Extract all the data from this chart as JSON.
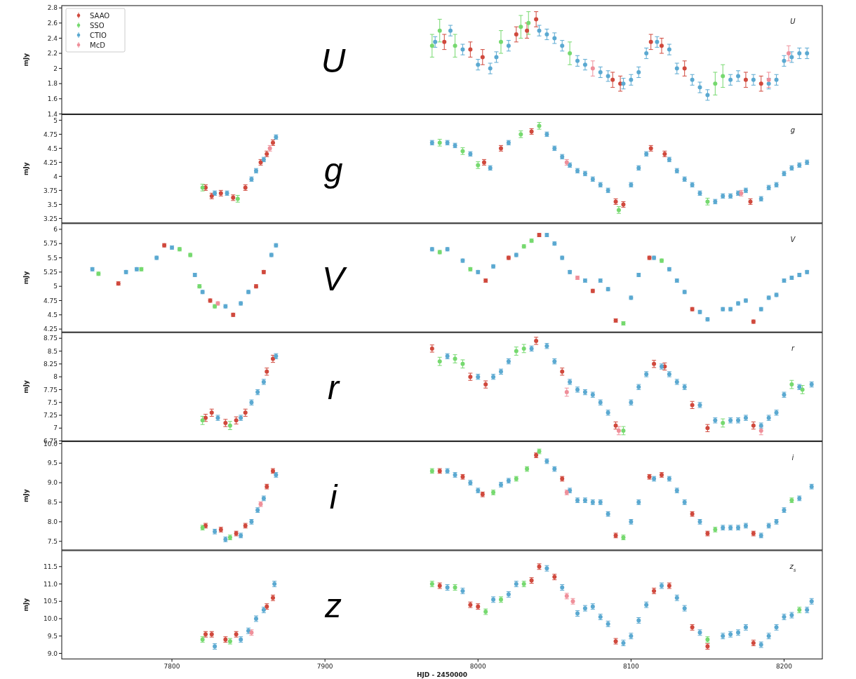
{
  "chart_data": [
    {
      "type": "scatter",
      "ylabel": "mJy",
      "annotations": [
        "U",
        "U"
      ],
      "xlim": [
        7728,
        8225
      ],
      "xticks": [
        7800,
        7900,
        8000,
        8100,
        8200
      ],
      "ylim": [
        1.4,
        2.83
      ],
      "yticks": [
        1.4,
        1.6,
        1.8,
        2.0,
        2.2,
        2.4,
        2.6,
        2.8
      ],
      "tick_labels": "y",
      "legend": "top left",
      "marker": "circle",
      "series": [
        {
          "name": "SAAO",
          "color": "#d0493d",
          "x": [
            7978,
            7995,
            8003,
            8025,
            8032,
            8038,
            8088,
            8093,
            8113,
            8120,
            8135,
            8175,
            8185
          ],
          "values": [
            2.35,
            2.25,
            2.15,
            2.45,
            2.5,
            2.65,
            1.85,
            1.8,
            2.35,
            2.3,
            2.0,
            1.85,
            1.8
          ],
          "errors": [
            0.1,
            0.1,
            0.1,
            0.1,
            0.1,
            0.1,
            0.1,
            0.1,
            0.1,
            0.1,
            0.1,
            0.1,
            0.1
          ]
        },
        {
          "name": "SSO",
          "color": "#76d96f",
          "x": [
            7970,
            7975,
            7985,
            8015,
            8028,
            8033,
            8060,
            8155,
            8160
          ],
          "values": [
            2.3,
            2.5,
            2.3,
            2.35,
            2.55,
            2.6,
            2.2,
            1.8,
            1.9
          ],
          "errors": [
            0.15,
            0.15,
            0.15,
            0.15,
            0.15,
            0.15,
            0.15,
            0.15,
            0.15
          ]
        },
        {
          "name": "CTIO",
          "color": "#5ba9d1",
          "x": [
            7972,
            7982,
            7990,
            8000,
            8008,
            8012,
            8020,
            8040,
            8045,
            8050,
            8055,
            8065,
            8070,
            8080,
            8085,
            8095,
            8100,
            8105,
            8110,
            8117,
            8125,
            8130,
            8140,
            8145,
            8150,
            8165,
            8170,
            8180,
            8190,
            8195,
            8200,
            8205,
            8210,
            8215
          ],
          "values": [
            2.35,
            2.5,
            2.25,
            2.05,
            2.0,
            2.15,
            2.3,
            2.5,
            2.45,
            2.4,
            2.3,
            2.1,
            2.05,
            1.95,
            1.9,
            1.8,
            1.85,
            1.95,
            2.2,
            2.35,
            2.25,
            2.0,
            1.85,
            1.75,
            1.65,
            1.85,
            1.9,
            1.85,
            1.8,
            1.85,
            2.1,
            2.15,
            2.2,
            2.2
          ],
          "errors": [
            0.07,
            0.07,
            0.07,
            0.07,
            0.07,
            0.07,
            0.07,
            0.07,
            0.07,
            0.07,
            0.07,
            0.07,
            0.07,
            0.07,
            0.07,
            0.07,
            0.07,
            0.07,
            0.07,
            0.07,
            0.07,
            0.07,
            0.07,
            0.07,
            0.07,
            0.07,
            0.07,
            0.07,
            0.07,
            0.07,
            0.07,
            0.07,
            0.07,
            0.07
          ]
        },
        {
          "name": "McD",
          "color": "#ef8f9a",
          "x": [
            8075,
            8190,
            8203
          ],
          "values": [
            2.0,
            1.85,
            2.2
          ],
          "errors": [
            0.1,
            0.1,
            0.1
          ]
        }
      ]
    },
    {
      "type": "scatter",
      "ylabel": "mJy",
      "annotations": [
        "g",
        "g"
      ],
      "xlim": [
        7728,
        8225
      ],
      "xticks": [
        7800,
        7900,
        8000,
        8100,
        8200
      ],
      "ylim": [
        3.17,
        5.1
      ],
      "yticks": [
        3.25,
        3.5,
        3.75,
        4.0,
        4.25,
        4.5,
        4.75,
        5.0
      ],
      "tick_labels": "y",
      "marker": "circle",
      "series": [
        {
          "color": "#d0493d",
          "x": [
            7822,
            7826,
            7832,
            7840,
            7848,
            7858,
            7862,
            7866,
            8004,
            8015,
            8035,
            8090,
            8095,
            8113,
            8122,
            8178
          ],
          "values": [
            3.8,
            3.65,
            3.7,
            3.62,
            3.8,
            4.25,
            4.4,
            4.6,
            4.25,
            4.5,
            4.8,
            3.55,
            3.5,
            4.5,
            4.4,
            3.55
          ],
          "errors": [
            0.05,
            0.05,
            0.05,
            0.05,
            0.05,
            0.05,
            0.05,
            0.05,
            0.05,
            0.05,
            0.05,
            0.05,
            0.05,
            0.05,
            0.05,
            0.05
          ]
        },
        {
          "color": "#76d96f",
          "x": [
            7820,
            7843,
            7975,
            7990,
            8000,
            8028,
            8040,
            8092,
            8150
          ],
          "values": [
            3.8,
            3.6,
            4.6,
            4.45,
            4.2,
            4.75,
            4.9,
            3.4,
            3.55
          ],
          "errors": [
            0.06,
            0.06,
            0.06,
            0.06,
            0.06,
            0.06,
            0.06,
            0.06,
            0.06
          ]
        },
        {
          "color": "#5ba9d1",
          "x": [
            7828,
            7836,
            7852,
            7855,
            7860,
            7868,
            7970,
            7980,
            7985,
            7995,
            8008,
            8020,
            8045,
            8050,
            8055,
            8060,
            8065,
            8070,
            8075,
            8080,
            8085,
            8100,
            8105,
            8110,
            8125,
            8130,
            8135,
            8140,
            8145,
            8155,
            8160,
            8165,
            8170,
            8175,
            8185,
            8190,
            8195,
            8200,
            8205,
            8210,
            8215
          ],
          "values": [
            3.7,
            3.7,
            3.95,
            4.1,
            4.3,
            4.7,
            4.6,
            4.6,
            4.55,
            4.4,
            4.15,
            4.6,
            4.75,
            4.5,
            4.35,
            4.2,
            4.1,
            4.05,
            3.95,
            3.85,
            3.75,
            3.85,
            4.15,
            4.4,
            4.3,
            4.1,
            3.95,
            3.85,
            3.7,
            3.55,
            3.65,
            3.65,
            3.7,
            3.75,
            3.6,
            3.8,
            3.85,
            4.05,
            4.15,
            4.2,
            4.25
          ],
          "errors": [
            0.04,
            0.04,
            0.04,
            0.04,
            0.04,
            0.04,
            0.04,
            0.04,
            0.04,
            0.04,
            0.04,
            0.04,
            0.04,
            0.04,
            0.04,
            0.04,
            0.04,
            0.04,
            0.04,
            0.04,
            0.04,
            0.04,
            0.04,
            0.04,
            0.04,
            0.04,
            0.04,
            0.04,
            0.04,
            0.04,
            0.04,
            0.04,
            0.04,
            0.04,
            0.04,
            0.04,
            0.04,
            0.04,
            0.04,
            0.04,
            0.04
          ]
        },
        {
          "color": "#ef8f9a",
          "x": [
            7864,
            8058,
            8172
          ],
          "values": [
            4.5,
            4.25,
            3.7
          ],
          "errors": [
            0.05,
            0.05,
            0.05
          ]
        }
      ]
    },
    {
      "type": "scatter",
      "ylabel": "mJy",
      "annotations": [
        "V",
        "V"
      ],
      "xlim": [
        7728,
        8225
      ],
      "xticks": [
        7800,
        7900,
        8000,
        8100,
        8200
      ],
      "ylim": [
        4.2,
        6.1
      ],
      "yticks": [
        4.25,
        4.5,
        4.75,
        5.0,
        5.25,
        5.5,
        5.75,
        6.0
      ],
      "tick_labels": "y",
      "marker": "circle",
      "series": [
        {
          "color": "#d0493d",
          "x": [
            7765,
            7795,
            7825,
            7840,
            7855,
            7860,
            8005,
            8020,
            8040,
            8075,
            8090,
            8112,
            8140,
            8180
          ],
          "values": [
            5.05,
            5.72,
            4.75,
            4.5,
            5.0,
            5.25,
            5.1,
            5.5,
            5.9,
            4.92,
            4.4,
            5.5,
            4.6,
            4.38
          ],
          "errors": [
            0.03,
            0.03,
            0.03,
            0.03,
            0.03,
            0.03,
            0.03,
            0.03,
            0.03,
            0.03,
            0.03,
            0.03,
            0.03,
            0.03
          ]
        },
        {
          "color": "#76d96f",
          "x": [
            7752,
            7780,
            7805,
            7812,
            7818,
            7828,
            7975,
            7995,
            8030,
            8035,
            8095,
            8120
          ],
          "values": [
            5.22,
            5.3,
            5.65,
            5.55,
            5.0,
            4.65,
            5.6,
            5.3,
            5.7,
            5.8,
            4.35,
            5.45
          ],
          "errors": [
            0.03,
            0.03,
            0.03,
            0.03,
            0.03,
            0.03,
            0.03,
            0.03,
            0.03,
            0.03,
            0.03,
            0.03
          ]
        },
        {
          "color": "#5ba9d1",
          "x": [
            7748,
            7770,
            7777,
            7790,
            7800,
            7815,
            7820,
            7835,
            7845,
            7850,
            7865,
            7868,
            7970,
            7980,
            7990,
            8000,
            8010,
            8025,
            8045,
            8050,
            8055,
            8060,
            8070,
            8080,
            8085,
            8100,
            8105,
            8115,
            8125,
            8130,
            8135,
            8145,
            8150,
            8160,
            8165,
            8170,
            8175,
            8185,
            8190,
            8195,
            8200,
            8205,
            8210,
            8215
          ],
          "values": [
            5.3,
            5.25,
            5.3,
            5.5,
            5.68,
            5.2,
            4.9,
            4.65,
            4.7,
            4.9,
            5.55,
            5.72,
            5.65,
            5.65,
            5.45,
            5.25,
            5.35,
            5.55,
            5.9,
            5.75,
            5.5,
            5.25,
            5.1,
            5.1,
            4.95,
            4.8,
            5.2,
            5.5,
            5.3,
            5.1,
            4.9,
            4.55,
            4.42,
            4.6,
            4.6,
            4.7,
            4.75,
            4.6,
            4.8,
            4.85,
            5.1,
            5.15,
            5.2,
            5.25
          ],
          "errors": [
            0.03,
            0.03,
            0.03,
            0.03,
            0.03,
            0.03,
            0.03,
            0.03,
            0.03,
            0.03,
            0.03,
            0.03,
            0.03,
            0.03,
            0.03,
            0.03,
            0.03,
            0.03,
            0.03,
            0.03,
            0.03,
            0.03,
            0.03,
            0.03,
            0.03,
            0.03,
            0.03,
            0.03,
            0.03,
            0.03,
            0.03,
            0.03,
            0.03,
            0.03,
            0.03,
            0.03,
            0.03,
            0.03,
            0.03,
            0.03,
            0.03,
            0.03,
            0.03,
            0.03
          ]
        },
        {
          "color": "#ef8f9a",
          "x": [
            7830,
            8065
          ],
          "values": [
            4.7,
            5.15
          ],
          "errors": [
            0.03,
            0.03
          ]
        }
      ]
    },
    {
      "type": "scatter",
      "ylabel": "mJy",
      "annotations": [
        "r",
        "r"
      ],
      "xlim": [
        7728,
        8225
      ],
      "xticks": [
        7800,
        7900,
        8000,
        8100,
        8200
      ],
      "ylim": [
        6.75,
        8.86
      ],
      "yticks": [
        6.75,
        7.0,
        7.25,
        7.5,
        7.75,
        8.0,
        8.25,
        8.5,
        8.75
      ],
      "tick_labels": "y",
      "marker": "circle",
      "series": [
        {
          "color": "#d0493d",
          "x": [
            7822,
            7826,
            7835,
            7842,
            7848,
            7862,
            7866,
            7970,
            7995,
            8005,
            8038,
            8055,
            8090,
            8115,
            8122,
            8140,
            8150,
            8180
          ],
          "values": [
            7.2,
            7.3,
            7.1,
            7.15,
            7.3,
            8.1,
            8.35,
            8.55,
            8.0,
            7.85,
            8.7,
            8.1,
            7.05,
            8.25,
            8.2,
            7.45,
            7.0,
            7.05
          ],
          "errors": [
            0.07,
            0.07,
            0.07,
            0.07,
            0.07,
            0.07,
            0.07,
            0.07,
            0.07,
            0.07,
            0.07,
            0.07,
            0.07,
            0.07,
            0.07,
            0.07,
            0.07,
            0.07
          ]
        },
        {
          "color": "#76d96f",
          "x": [
            7820,
            7838,
            7975,
            7985,
            7990,
            8025,
            8030,
            8095,
            8160,
            8205,
            8212
          ],
          "values": [
            7.15,
            7.05,
            8.3,
            8.35,
            8.25,
            8.5,
            8.55,
            6.95,
            7.1,
            7.85,
            7.75
          ],
          "errors": [
            0.08,
            0.08,
            0.08,
            0.08,
            0.08,
            0.08,
            0.08,
            0.08,
            0.08,
            0.08,
            0.08
          ]
        },
        {
          "color": "#5ba9d1",
          "x": [
            7830,
            7845,
            7852,
            7856,
            7860,
            7868,
            7980,
            8000,
            8010,
            8015,
            8020,
            8035,
            8045,
            8050,
            8060,
            8065,
            8070,
            8075,
            8080,
            8085,
            8100,
            8105,
            8110,
            8120,
            8125,
            8130,
            8135,
            8145,
            8155,
            8165,
            8170,
            8175,
            8185,
            8190,
            8195,
            8200,
            8210,
            8218
          ],
          "values": [
            7.2,
            7.2,
            7.5,
            7.7,
            7.9,
            8.4,
            8.4,
            8.0,
            8.0,
            8.1,
            8.3,
            8.55,
            8.6,
            8.3,
            7.9,
            7.75,
            7.7,
            7.65,
            7.5,
            7.3,
            7.5,
            7.8,
            8.05,
            8.2,
            8.05,
            7.9,
            7.8,
            7.45,
            7.15,
            7.15,
            7.15,
            7.2,
            7.05,
            7.2,
            7.3,
            7.65,
            7.8,
            7.85
          ],
          "errors": [
            0.05,
            0.05,
            0.05,
            0.05,
            0.05,
            0.05,
            0.05,
            0.05,
            0.05,
            0.05,
            0.05,
            0.05,
            0.05,
            0.05,
            0.05,
            0.05,
            0.05,
            0.05,
            0.05,
            0.05,
            0.05,
            0.05,
            0.05,
            0.05,
            0.05,
            0.05,
            0.05,
            0.05,
            0.05,
            0.05,
            0.05,
            0.05,
            0.05,
            0.05,
            0.05,
            0.05,
            0.05,
            0.05
          ]
        },
        {
          "color": "#ef8f9a",
          "x": [
            8058,
            8092,
            8185
          ],
          "values": [
            7.7,
            6.95,
            6.95
          ],
          "errors": [
            0.08,
            0.08,
            0.08
          ]
        }
      ]
    },
    {
      "type": "scatter",
      "ylabel": "mJy",
      "annotations": [
        "i",
        "i"
      ],
      "xlim": [
        7728,
        8225
      ],
      "xticks": [
        7800,
        7900,
        8000,
        8100,
        8200
      ],
      "ylim": [
        7.28,
        10.05
      ],
      "yticks": [
        {
          "value": 7.5,
          "label": "7.5"
        },
        {
          "value": 8.0,
          "label": "8.0"
        },
        {
          "value": 8.5,
          "label": "8.5"
        },
        {
          "value": 9.0,
          "label": "9.0"
        },
        {
          "value": 9.5,
          "label": "9.5"
        },
        {
          "value": 10.0,
          "label": "10.0"
        }
      ],
      "tick_labels": "y",
      "marker": "circle",
      "series": [
        {
          "color": "#d0493d",
          "x": [
            7822,
            7832,
            7842,
            7848,
            7862,
            7866,
            7975,
            7990,
            8003,
            8038,
            8055,
            8090,
            8112,
            8120,
            8140,
            8150,
            8180
          ],
          "values": [
            7.9,
            7.8,
            7.7,
            7.9,
            8.9,
            9.3,
            9.3,
            9.15,
            8.7,
            9.7,
            9.1,
            7.65,
            9.15,
            9.2,
            8.2,
            7.7,
            7.7
          ],
          "errors": [
            0.06,
            0.06,
            0.06,
            0.06,
            0.06,
            0.06,
            0.06,
            0.06,
            0.06,
            0.06,
            0.06,
            0.06,
            0.06,
            0.06,
            0.06,
            0.06,
            0.06
          ]
        },
        {
          "color": "#76d96f",
          "x": [
            7820,
            7838,
            7970,
            8010,
            8025,
            8032,
            8040,
            8095,
            8155,
            8205
          ],
          "values": [
            7.85,
            7.6,
            9.3,
            8.75,
            9.1,
            9.35,
            9.8,
            7.6,
            7.8,
            8.55
          ],
          "errors": [
            0.06,
            0.06,
            0.06,
            0.06,
            0.06,
            0.06,
            0.06,
            0.06,
            0.06,
            0.06
          ]
        },
        {
          "color": "#5ba9d1",
          "x": [
            7828,
            7835,
            7845,
            7852,
            7856,
            7860,
            7868,
            7980,
            7985,
            7995,
            8000,
            8015,
            8020,
            8045,
            8050,
            8060,
            8065,
            8070,
            8075,
            8080,
            8085,
            8100,
            8105,
            8115,
            8125,
            8130,
            8135,
            8145,
            8160,
            8165,
            8170,
            8175,
            8185,
            8190,
            8195,
            8200,
            8210,
            8218
          ],
          "values": [
            7.75,
            7.55,
            7.65,
            8.0,
            8.3,
            8.6,
            9.2,
            9.3,
            9.2,
            9.0,
            8.8,
            8.95,
            9.05,
            9.55,
            9.35,
            8.8,
            8.55,
            8.55,
            8.5,
            8.5,
            8.2,
            8.0,
            8.5,
            9.1,
            9.1,
            8.8,
            8.5,
            8.0,
            7.85,
            7.85,
            7.85,
            7.9,
            7.65,
            7.9,
            8.0,
            8.3,
            8.6,
            8.9
          ],
          "errors": [
            0.06,
            0.06,
            0.06,
            0.06,
            0.06,
            0.06,
            0.06,
            0.06,
            0.06,
            0.06,
            0.06,
            0.06,
            0.06,
            0.06,
            0.06,
            0.06,
            0.06,
            0.06,
            0.06,
            0.06,
            0.06,
            0.06,
            0.06,
            0.06,
            0.06,
            0.06,
            0.06,
            0.06,
            0.06,
            0.06,
            0.06,
            0.06,
            0.06,
            0.06,
            0.06,
            0.06,
            0.06,
            0.06
          ]
        },
        {
          "color": "#ef8f9a",
          "x": [
            7858,
            8058
          ],
          "values": [
            8.45,
            8.75
          ],
          "errors": [
            0.06,
            0.06
          ]
        }
      ]
    },
    {
      "type": "scatter",
      "ylabel": "mJy",
      "xlabel": "HJD - 2450000",
      "annotations": [
        "z",
        "z$_{s}$"
      ],
      "xlim": [
        7728,
        8225
      ],
      "xticks": [
        7800,
        7900,
        8000,
        8100,
        8200
      ],
      "ylim": [
        8.84,
        11.96
      ],
      "yticks": [
        {
          "value": 9.0,
          "label": "9.0"
        },
        9.5,
        {
          "value": 10.0,
          "label": "10.0"
        },
        10.5,
        {
          "value": 11.0,
          "label": "11.0"
        },
        11.5
      ],
      "marker": "circle",
      "series": [
        {
          "color": "#d0493d",
          "x": [
            7822,
            7826,
            7835,
            7842,
            7862,
            7866,
            7975,
            7995,
            8000,
            8035,
            8040,
            8050,
            8090,
            8115,
            8125,
            8140,
            8150,
            8180
          ],
          "values": [
            9.55,
            9.55,
            9.4,
            9.55,
            10.35,
            10.6,
            10.95,
            10.4,
            10.35,
            11.1,
            11.5,
            11.2,
            9.35,
            10.8,
            10.95,
            9.75,
            9.2,
            9.3
          ],
          "errors": [
            0.08,
            0.08,
            0.08,
            0.08,
            0.08,
            0.08,
            0.08,
            0.08,
            0.08,
            0.08,
            0.08,
            0.08,
            0.08,
            0.08,
            0.08,
            0.08,
            0.08,
            0.08
          ]
        },
        {
          "color": "#76d96f",
          "x": [
            7820,
            7838,
            7970,
            7985,
            8005,
            8015,
            8030,
            8150,
            8210
          ],
          "values": [
            9.4,
            9.35,
            11.0,
            10.9,
            10.2,
            10.55,
            11.0,
            9.4,
            10.25
          ],
          "errors": [
            0.08,
            0.08,
            0.08,
            0.08,
            0.08,
            0.08,
            0.08,
            0.08,
            0.08
          ]
        },
        {
          "color": "#5ba9d1",
          "x": [
            7828,
            7845,
            7850,
            7855,
            7860,
            7867,
            7980,
            7990,
            8010,
            8020,
            8025,
            8045,
            8055,
            8065,
            8070,
            8075,
            8080,
            8085,
            8095,
            8100,
            8105,
            8110,
            8120,
            8130,
            8135,
            8145,
            8160,
            8165,
            8170,
            8175,
            8185,
            8190,
            8195,
            8200,
            8205,
            8215,
            8218
          ],
          "values": [
            9.2,
            9.4,
            9.65,
            10.0,
            10.25,
            11.0,
            10.9,
            10.8,
            10.55,
            10.7,
            11.0,
            11.45,
            10.9,
            10.15,
            10.3,
            10.35,
            10.05,
            9.85,
            9.3,
            9.5,
            9.95,
            10.4,
            10.95,
            10.6,
            10.3,
            9.6,
            9.5,
            9.55,
            9.6,
            9.75,
            9.25,
            9.5,
            9.75,
            10.05,
            10.1,
            10.25,
            10.5
          ],
          "errors": [
            0.08,
            0.08,
            0.08,
            0.08,
            0.08,
            0.08,
            0.08,
            0.08,
            0.08,
            0.08,
            0.08,
            0.08,
            0.08,
            0.08,
            0.08,
            0.08,
            0.08,
            0.08,
            0.08,
            0.08,
            0.08,
            0.08,
            0.08,
            0.08,
            0.08,
            0.08,
            0.08,
            0.08,
            0.08,
            0.08,
            0.08,
            0.08,
            0.08,
            0.08,
            0.08,
            0.08,
            0.08
          ]
        },
        {
          "color": "#ef8f9a",
          "x": [
            7852,
            8058,
            8062
          ],
          "values": [
            9.6,
            10.65,
            10.5
          ],
          "errors": [
            0.08,
            0.08,
            0.08
          ]
        }
      ]
    }
  ]
}
